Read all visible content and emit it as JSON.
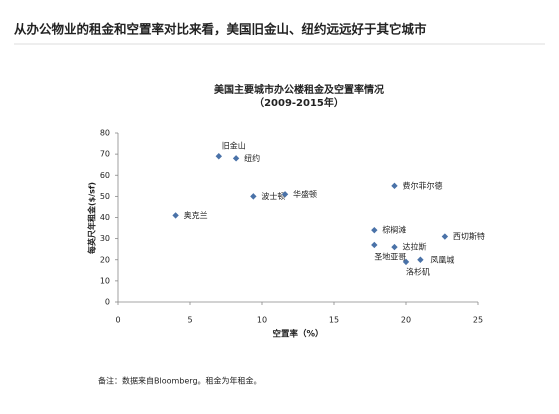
{
  "header": {
    "title": "从办公物业的租金和空置率对比来看，美国旧金山、纽约远远好于其它城市"
  },
  "chart_data": {
    "type": "scatter",
    "title": "美国主要城市办公楼租金及空置率情况",
    "subtitle": "（2009-2015年）",
    "x_label": "空置率（%）",
    "y_label": "每英尺年租金($/sf)",
    "point_labels": [
      "旧金山",
      "纽约",
      "波士顿",
      "华盛顿",
      "奥克兰",
      "费尔菲尔德",
      "棕榈滩",
      "西切斯特",
      "达拉斯",
      "圣地亚哥",
      "洛杉矶",
      "凤凰城"
    ],
    "x": [
      7,
      8.2,
      9.4,
      11.6,
      4,
      19.2,
      17.8,
      22.7,
      19.2,
      17.8,
      20,
      21
    ],
    "values": [
      69,
      68,
      50,
      51,
      41,
      55,
      34,
      31,
      26,
      27,
      19,
      20
    ],
    "color": "#4a72a8",
    "xlim": [
      0,
      25
    ],
    "xticks": [
      0,
      5,
      10,
      15,
      20,
      25
    ],
    "ylim": [
      0,
      80
    ],
    "yticks": [
      0,
      10,
      20,
      30,
      40,
      50,
      60,
      70,
      80
    ],
    "grid": false
  },
  "note": "备注：数据来自Bloomberg。租金为年租金。"
}
